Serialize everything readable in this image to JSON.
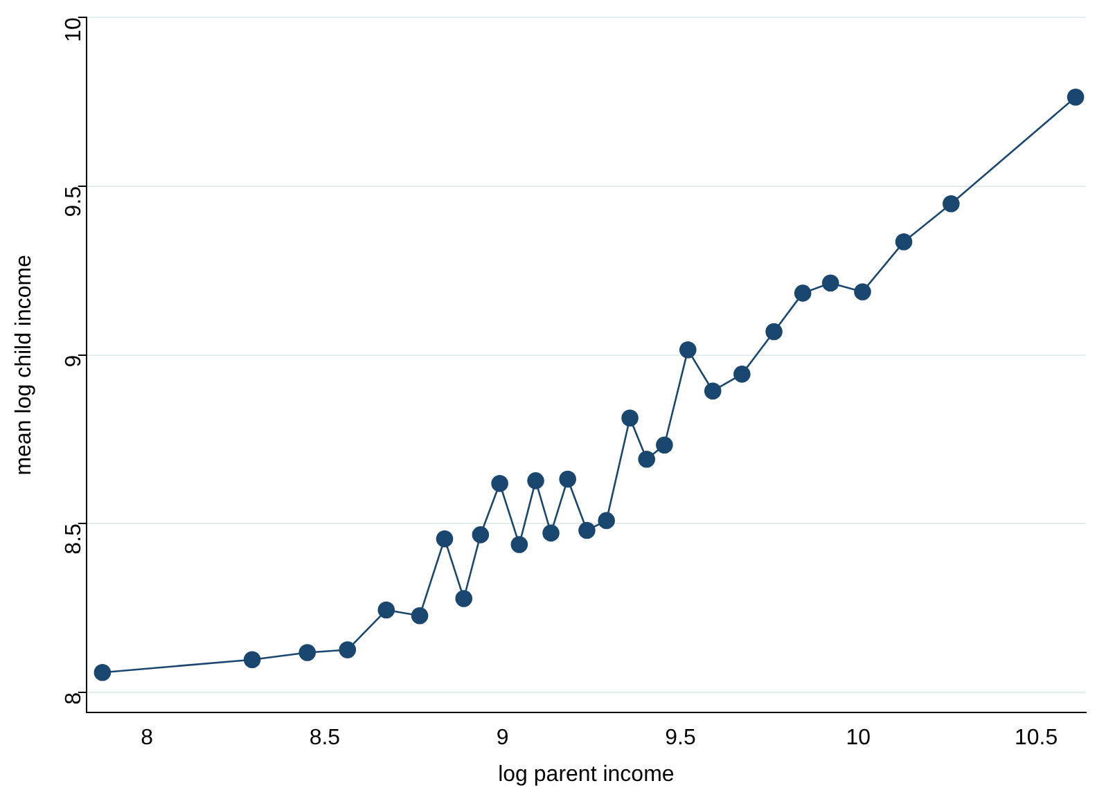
{
  "chart_data": {
    "type": "line",
    "xlabel": "log parent income",
    "ylabel": "mean log child income",
    "x": [
      7.875,
      8.296,
      8.451,
      8.564,
      8.673,
      8.767,
      8.837,
      8.891,
      8.938,
      8.992,
      9.047,
      9.093,
      9.136,
      9.183,
      9.237,
      9.292,
      9.358,
      9.405,
      9.455,
      9.521,
      9.591,
      9.673,
      9.763,
      9.844,
      9.922,
      10.012,
      10.128,
      10.261,
      10.611
    ],
    "series": [
      {
        "color": "#1a476f",
        "values": [
          8.059,
          8.097,
          8.118,
          8.126,
          8.244,
          8.227,
          8.455,
          8.278,
          8.467,
          8.619,
          8.438,
          8.627,
          8.472,
          8.632,
          8.48,
          8.509,
          8.813,
          8.691,
          8.733,
          9.015,
          8.893,
          8.943,
          9.069,
          9.183,
          9.213,
          9.187,
          9.335,
          9.448,
          9.764
        ]
      }
    ],
    "xlim": [
      7.83,
      10.64
    ],
    "xticks": [
      8,
      8.5,
      9,
      9.5,
      10,
      10.5
    ],
    "ylim": [
      7.94,
      10
    ],
    "yticks": [
      8,
      8.5,
      9,
      9.5,
      10
    ],
    "grid": "y",
    "legend": false,
    "marker": "circle",
    "line_style": "solid"
  }
}
